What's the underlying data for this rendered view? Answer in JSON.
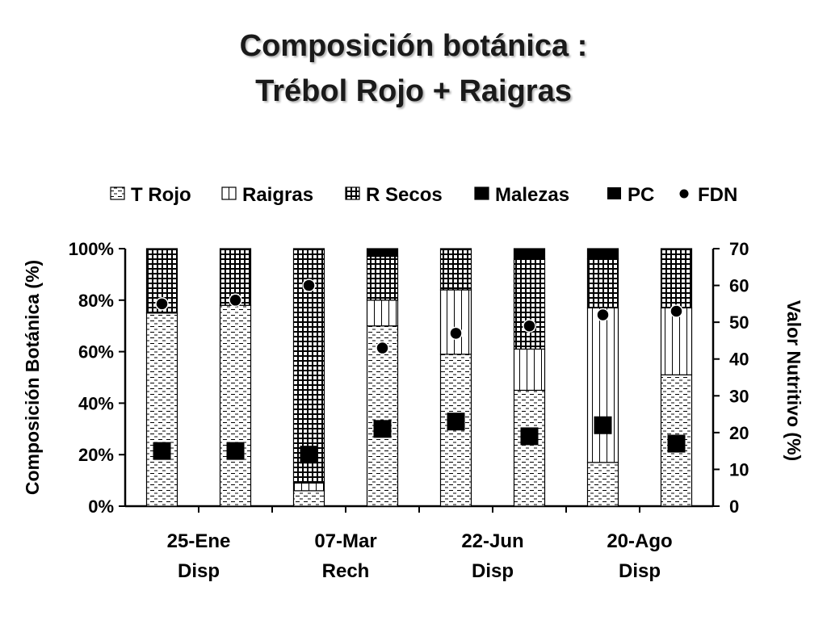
{
  "title_line1": "Composición botánica :",
  "title_line2": "Trébol Rojo + Raigras",
  "chart_data": {
    "type": "bar",
    "subtype": "stacked-100-with-scatter-overlay",
    "categories": [
      "25-Ene\nDisp",
      "",
      "07-Mar\nRech",
      "",
      "22-Jun\nDisp",
      "",
      "20-Ago\nDisp",
      ""
    ],
    "series": [
      {
        "name": "T Rojo",
        "pattern": "dashes",
        "values": [
          75,
          78,
          6,
          70,
          59,
          45,
          17,
          51
        ]
      },
      {
        "name": "Raigras",
        "pattern": "vertical",
        "values": [
          0,
          0,
          3,
          10,
          25,
          16,
          60,
          26
        ]
      },
      {
        "name": "R Secos",
        "pattern": "grid",
        "values": [
          25,
          22,
          91,
          17,
          16,
          35,
          19,
          23
        ]
      },
      {
        "name": "Malezas",
        "pattern": "solid",
        "values": [
          0,
          0,
          0,
          3,
          0,
          4,
          4,
          0
        ]
      }
    ],
    "overlay": [
      {
        "name": "PC",
        "marker": "square",
        "axis": "y2",
        "values": [
          15,
          15,
          14,
          21,
          23,
          19,
          22,
          17
        ]
      },
      {
        "name": "FDN",
        "marker": "circle",
        "axis": "y2",
        "values": [
          55,
          56,
          60,
          43,
          47,
          49,
          52,
          53
        ]
      }
    ],
    "ylabel": "Composición Botánica (%)",
    "y2label": "Valor Nutritivo (%)",
    "ylim": [
      0,
      100
    ],
    "yticks": [
      "0%",
      "20%",
      "40%",
      "60%",
      "80%",
      "100%"
    ],
    "y2lim": [
      0,
      70
    ],
    "y2ticks": [
      "0",
      "10",
      "20",
      "30",
      "40",
      "50",
      "60",
      "70"
    ],
    "legend_position": "top",
    "grid": false
  }
}
